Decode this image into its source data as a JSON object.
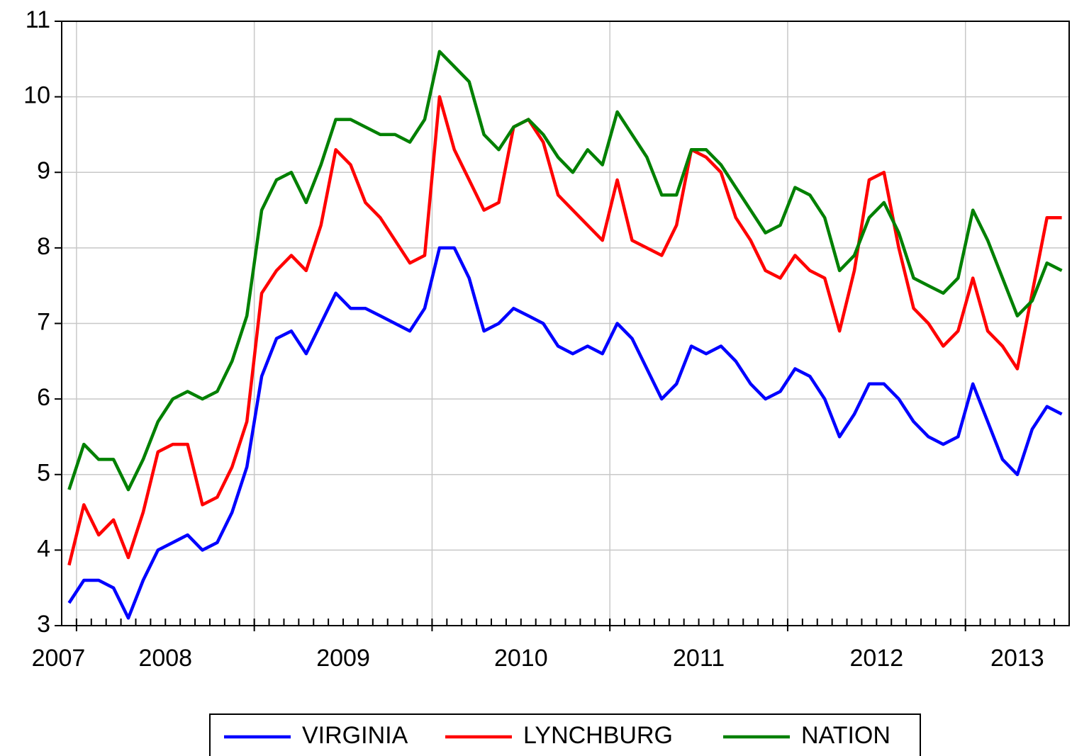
{
  "chart_data": {
    "type": "line",
    "x": [
      "2007-12",
      "2008-01",
      "2008-02",
      "2008-03",
      "2008-04",
      "2008-05",
      "2008-06",
      "2008-07",
      "2008-08",
      "2008-09",
      "2008-10",
      "2008-11",
      "2008-12",
      "2009-01",
      "2009-02",
      "2009-03",
      "2009-04",
      "2009-05",
      "2009-06",
      "2009-07",
      "2009-08",
      "2009-09",
      "2009-10",
      "2009-11",
      "2009-12",
      "2010-01",
      "2010-02",
      "2010-03",
      "2010-04",
      "2010-05",
      "2010-06",
      "2010-07",
      "2010-08",
      "2010-09",
      "2010-10",
      "2010-11",
      "2010-12",
      "2011-01",
      "2011-02",
      "2011-03",
      "2011-04",
      "2011-05",
      "2011-06",
      "2011-07",
      "2011-08",
      "2011-09",
      "2011-10",
      "2011-11",
      "2011-12",
      "2012-01",
      "2012-02",
      "2012-03",
      "2012-04",
      "2012-05",
      "2012-06",
      "2012-07",
      "2012-08",
      "2012-09",
      "2012-10",
      "2012-11",
      "2012-12",
      "2013-01",
      "2013-02",
      "2013-03",
      "2013-04",
      "2013-05",
      "2013-06",
      "2013-07"
    ],
    "xlim": [
      "2007-12",
      "2013-07"
    ],
    "xticks": [
      2007,
      2008,
      2009,
      2010,
      2011,
      2012,
      2013
    ],
    "ylim": [
      3,
      11
    ],
    "yticks": [
      3,
      4,
      5,
      6,
      7,
      8,
      9,
      10,
      11
    ],
    "grid": true,
    "legend": "bottom",
    "series": [
      {
        "name": "VIRGINIA",
        "color": "#0000ff",
        "values": [
          3.3,
          3.6,
          3.6,
          3.5,
          3.1,
          3.6,
          4.0,
          4.1,
          4.2,
          4.0,
          4.1,
          4.5,
          5.1,
          6.3,
          6.8,
          6.9,
          6.6,
          7.0,
          7.4,
          7.2,
          7.2,
          7.1,
          7.0,
          6.9,
          7.2,
          8.0,
          8.0,
          7.6,
          6.9,
          7.0,
          7.2,
          7.1,
          7.0,
          6.7,
          6.6,
          6.7,
          6.6,
          7.0,
          6.8,
          6.4,
          6.0,
          6.2,
          6.7,
          6.6,
          6.7,
          6.5,
          6.2,
          6.0,
          6.1,
          6.4,
          6.3,
          6.0,
          5.5,
          5.8,
          6.2,
          6.2,
          6.0,
          5.7,
          5.5,
          5.4,
          5.5,
          6.2,
          5.7,
          5.2,
          5.0,
          5.6,
          5.9,
          5.8
        ]
      },
      {
        "name": "LYNCHBURG",
        "color": "#ff0000",
        "values": [
          3.8,
          4.6,
          4.2,
          4.4,
          3.9,
          4.5,
          5.3,
          5.4,
          5.4,
          4.6,
          4.7,
          5.1,
          5.7,
          7.4,
          7.7,
          7.9,
          7.7,
          8.3,
          9.3,
          9.1,
          8.6,
          8.4,
          8.1,
          7.8,
          7.9,
          10.0,
          9.3,
          8.9,
          8.5,
          8.6,
          9.6,
          9.7,
          9.4,
          8.7,
          8.5,
          8.3,
          8.1,
          8.9,
          8.1,
          8.0,
          7.9,
          8.3,
          9.3,
          9.2,
          9.0,
          8.4,
          8.1,
          7.7,
          7.6,
          7.9,
          7.7,
          7.6,
          6.9,
          7.7,
          8.9,
          9.0,
          8.0,
          7.2,
          7.0,
          6.7,
          6.9,
          7.6,
          6.9,
          6.7,
          6.4,
          7.4,
          8.4,
          8.4
        ]
      },
      {
        "name": "NATION",
        "color": "#008000",
        "values": [
          4.8,
          5.4,
          5.2,
          5.2,
          4.8,
          5.2,
          5.7,
          6.0,
          6.1,
          6.0,
          6.1,
          6.5,
          7.1,
          8.5,
          8.9,
          9.0,
          8.6,
          9.1,
          9.7,
          9.7,
          9.6,
          9.5,
          9.5,
          9.4,
          9.7,
          10.6,
          10.4,
          10.2,
          9.5,
          9.3,
          9.6,
          9.7,
          9.5,
          9.2,
          9.0,
          9.3,
          9.1,
          9.8,
          9.5,
          9.2,
          8.7,
          8.7,
          9.3,
          9.3,
          9.1,
          8.8,
          8.5,
          8.2,
          8.3,
          8.8,
          8.7,
          8.4,
          7.7,
          7.9,
          8.4,
          8.6,
          8.2,
          7.6,
          7.5,
          7.4,
          7.6,
          8.5,
          8.1,
          7.6,
          7.1,
          7.3,
          7.8,
          7.7
        ]
      }
    ]
  }
}
